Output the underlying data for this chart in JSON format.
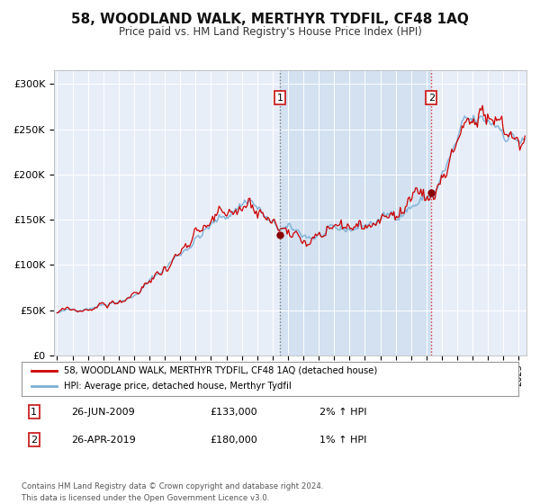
{
  "title": "58, WOODLAND WALK, MERTHYR TYDFIL, CF48 1AQ",
  "subtitle": "Price paid vs. HM Land Registry's House Price Index (HPI)",
  "background_color": "#ffffff",
  "plot_bg_color": "#e8eef8",
  "grid_color": "#ffffff",
  "hpi_line_color": "#7bafd4",
  "price_line_color": "#cc0000",
  "sale_marker_color": "#880000",
  "vline1_color": "#888888",
  "vline2_color": "#cc0000",
  "span_color": "#d0dff0",
  "sale1_x": 2009.49,
  "sale1_y": 133000,
  "sale2_x": 2019.33,
  "sale2_y": 180000,
  "ylim": [
    0,
    315000
  ],
  "xlim": [
    1994.8,
    2025.5
  ],
  "yticks": [
    0,
    50000,
    100000,
    150000,
    200000,
    250000,
    300000
  ],
  "ytick_labels": [
    "£0",
    "£50K",
    "£100K",
    "£150K",
    "£200K",
    "£250K",
    "£300K"
  ],
  "legend_line1": "58, WOODLAND WALK, MERTHYR TYDFIL, CF48 1AQ (detached house)",
  "legend_line2": "HPI: Average price, detached house, Merthyr Tydfil",
  "annotation1_label": "1",
  "annotation1_date": "26-JUN-2009",
  "annotation1_price": "£133,000",
  "annotation1_hpi": "2% ↑ HPI",
  "annotation2_label": "2",
  "annotation2_date": "26-APR-2019",
  "annotation2_price": "£180,000",
  "annotation2_hpi": "1% ↑ HPI",
  "footnote1": "Contains HM Land Registry data © Crown copyright and database right 2024.",
  "footnote2": "This data is licensed under the Open Government Licence v3.0."
}
